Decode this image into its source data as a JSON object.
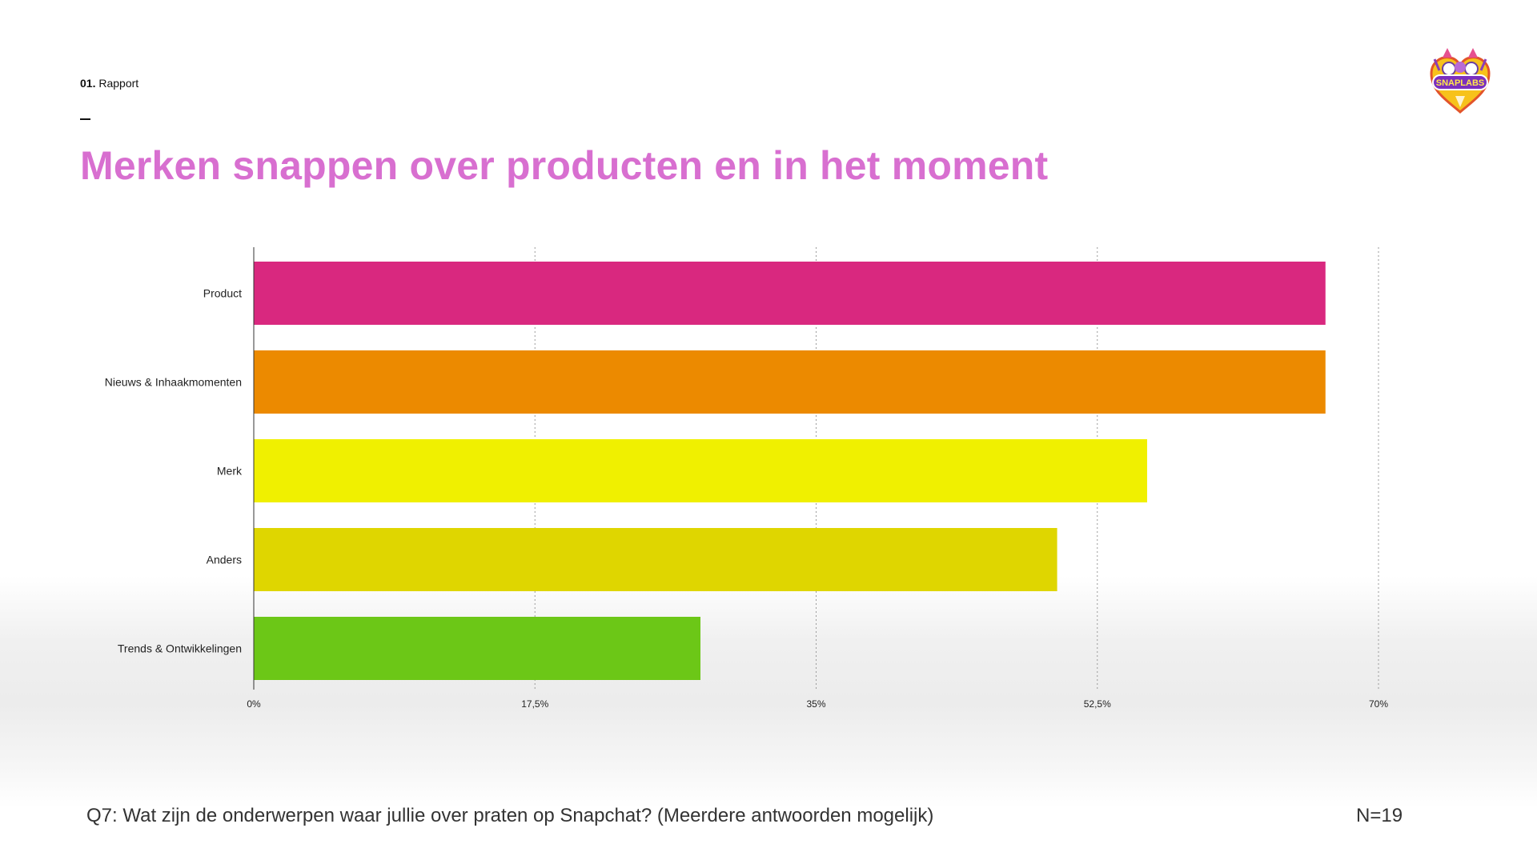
{
  "header": {
    "section_number": "01.",
    "section_name": "Rapport",
    "title": "Merken snappen over producten en in het moment"
  },
  "logo": {
    "text": "SNAPLABS",
    "icon": "unicorn-heart-logo-icon"
  },
  "chart_data": {
    "type": "bar",
    "orientation": "horizontal",
    "categories": [
      "Product",
      "Nieuws & Inhaakmomenten",
      "Merk",
      "Anders",
      "Trends & Ontwikkelingen"
    ],
    "values": [
      66.7,
      66.7,
      55.6,
      50.0,
      27.8
    ],
    "unit": "%",
    "xlim": [
      0,
      70
    ],
    "x_ticks": [
      "0%",
      "17,5%",
      "35%",
      "52,5%",
      "70%"
    ],
    "grid": "vertical dotted",
    "colors": [
      "#d9287f",
      "#ec8a00",
      "#f0f000",
      "#dfd600",
      "#6cc717"
    ],
    "title": "",
    "xlabel": "",
    "ylabel": ""
  },
  "footer": {
    "question": "Q7: Wat zijn de onderwerpen waar jullie over praten op Snapchat? (Meerdere antwoorden mogelijk)",
    "sample_size": "N=19"
  }
}
